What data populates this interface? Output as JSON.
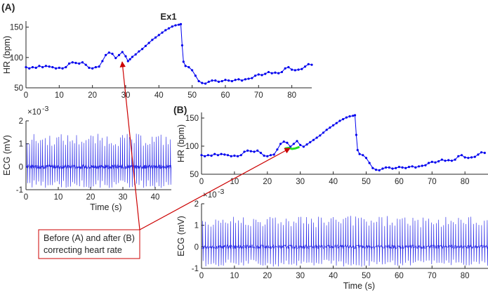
{
  "figure": {
    "title": "Ex1",
    "colors": {
      "hr_line": "#0000ee",
      "ecg_line": "#1a1ae6",
      "corrected_segment": "#22dd22",
      "annotation": "#cc0000",
      "axis": "#262626"
    },
    "callout_lines": [
      "Before (A) and after (B)",
      "correcting heart rate"
    ]
  },
  "chart_data": [
    {
      "id": "A-hr",
      "panel_label": "(A)",
      "type": "line",
      "title": "Ex1",
      "xlabel": "",
      "ylabel": "HR (bpm)",
      "xlim": [
        0,
        86
      ],
      "ylim": [
        50,
        160
      ],
      "xticks": [
        0,
        10,
        20,
        30,
        40,
        50,
        60,
        70,
        80
      ],
      "yticks": [
        50,
        100,
        150
      ],
      "grid": false,
      "series": [
        {
          "marker": "dot",
          "points": [
            [
              0,
              84
            ],
            [
              1,
              82
            ],
            [
              2,
              84
            ],
            [
              3,
              83
            ],
            [
              4,
              86
            ],
            [
              5,
              84
            ],
            [
              6,
              86
            ],
            [
              7,
              85
            ],
            [
              8,
              84
            ],
            [
              9,
              82
            ],
            [
              10,
              83
            ],
            [
              11,
              82
            ],
            [
              12,
              84
            ],
            [
              13,
              90
            ],
            [
              14,
              92
            ],
            [
              15,
              91
            ],
            [
              16,
              90
            ],
            [
              17,
              92
            ],
            [
              18,
              88
            ],
            [
              19,
              83
            ],
            [
              20,
              82
            ],
            [
              21,
              84
            ],
            [
              22,
              85
            ],
            [
              23,
              94
            ],
            [
              24,
              104
            ],
            [
              25,
              108
            ],
            [
              26,
              106
            ],
            [
              27,
              99
            ],
            [
              28,
              104
            ],
            [
              29,
              109
            ],
            [
              30,
              102
            ],
            [
              30.7,
              94
            ],
            [
              31.3,
              97
            ],
            [
              32,
              101
            ],
            [
              33,
              105
            ],
            [
              34,
              110
            ],
            [
              35,
              114
            ],
            [
              36,
              119
            ],
            [
              37,
              124
            ],
            [
              38,
              129
            ],
            [
              39,
              133
            ],
            [
              40,
              137
            ],
            [
              41,
              141
            ],
            [
              42,
              145
            ],
            [
              43,
              148
            ],
            [
              44,
              151
            ],
            [
              45,
              153
            ],
            [
              46,
              154
            ],
            [
              46.6,
              155
            ],
            [
              47,
              120
            ],
            [
              47.4,
              93
            ],
            [
              48,
              86
            ],
            [
              49,
              84
            ],
            [
              50,
              79
            ],
            [
              51,
              70
            ],
            [
              52,
              61
            ],
            [
              53,
              58
            ],
            [
              54,
              57
            ],
            [
              55,
              60
            ],
            [
              56,
              62
            ],
            [
              57,
              62
            ],
            [
              58,
              60
            ],
            [
              59,
              61
            ],
            [
              60,
              63
            ],
            [
              61,
              62
            ],
            [
              62,
              61
            ],
            [
              63,
              63
            ],
            [
              64,
              64
            ],
            [
              65,
              62
            ],
            [
              66,
              64
            ],
            [
              67,
              65
            ],
            [
              68,
              66
            ],
            [
              69,
              70
            ],
            [
              70,
              72
            ],
            [
              71,
              71
            ],
            [
              72,
              73
            ],
            [
              73,
              76
            ],
            [
              74,
              74
            ],
            [
              75,
              75
            ],
            [
              76,
              74
            ],
            [
              77,
              76
            ],
            [
              78,
              82
            ],
            [
              79,
              84
            ],
            [
              80,
              80
            ],
            [
              81,
              79
            ],
            [
              82,
              80
            ],
            [
              83,
              81
            ],
            [
              84,
              85
            ],
            [
              85,
              89
            ],
            [
              86,
              88
            ]
          ]
        }
      ]
    },
    {
      "id": "A-ecg",
      "type": "line",
      "xlabel": "Time (s)",
      "ylabel": "ECG (mV)",
      "exponent_label": "×10",
      "exponent_power": "-3",
      "xlim": [
        0,
        45
      ],
      "ylim": [
        -1,
        2
      ],
      "xticks": [
        0,
        10,
        20,
        30,
        40
      ],
      "yticks": [
        -1,
        0,
        1,
        2
      ],
      "grid": false,
      "series": [
        {
          "kind": "ecg",
          "baseline": 0,
          "beats_per_second_mean": 1.4,
          "r_peak": 1.2,
          "s_trough": -0.85
        }
      ]
    },
    {
      "id": "B-hr",
      "panel_label": "(B)",
      "type": "line",
      "xlabel": "",
      "ylabel": "HR (bpm)",
      "xlim": [
        0,
        87
      ],
      "ylim": [
        50,
        160
      ],
      "xticks": [
        0,
        10,
        20,
        30,
        40,
        50,
        60,
        70,
        80
      ],
      "yticks": [
        50,
        100,
        150
      ],
      "grid": false,
      "series": [
        {
          "marker": "dot",
          "points": [
            [
              0,
              84
            ],
            [
              1,
              82
            ],
            [
              2,
              84
            ],
            [
              3,
              83
            ],
            [
              4,
              86
            ],
            [
              5,
              84
            ],
            [
              6,
              86
            ],
            [
              7,
              85
            ],
            [
              8,
              84
            ],
            [
              9,
              82
            ],
            [
              10,
              83
            ],
            [
              11,
              82
            ],
            [
              12,
              84
            ],
            [
              13,
              90
            ],
            [
              14,
              92
            ],
            [
              15,
              91
            ],
            [
              16,
              90
            ],
            [
              17,
              92
            ],
            [
              18,
              88
            ],
            [
              19,
              83
            ],
            [
              20,
              82
            ],
            [
              21,
              84
            ],
            [
              22,
              85
            ],
            [
              23,
              94
            ],
            [
              24,
              104
            ],
            [
              25,
              108
            ],
            [
              26,
              106
            ],
            [
              27,
              99
            ],
            [
              28,
              104
            ],
            [
              29,
              109
            ],
            [
              30,
              102
            ],
            [
              31,
              99
            ],
            [
              32,
              103
            ],
            [
              33,
              107
            ],
            [
              34,
              111
            ],
            [
              35,
              115
            ],
            [
              36,
              119
            ],
            [
              37,
              124
            ],
            [
              38,
              129
            ],
            [
              39,
              133
            ],
            [
              40,
              137
            ],
            [
              41,
              141
            ],
            [
              42,
              145
            ],
            [
              43,
              148
            ],
            [
              44,
              151
            ],
            [
              45,
              153
            ],
            [
              46,
              154
            ],
            [
              46.6,
              155
            ],
            [
              47,
              120
            ],
            [
              47.4,
              93
            ],
            [
              48,
              86
            ],
            [
              49,
              84
            ],
            [
              50,
              79
            ],
            [
              51,
              70
            ],
            [
              52,
              61
            ],
            [
              53,
              58
            ],
            [
              54,
              57
            ],
            [
              55,
              60
            ],
            [
              56,
              62
            ],
            [
              57,
              62
            ],
            [
              58,
              60
            ],
            [
              59,
              61
            ],
            [
              60,
              63
            ],
            [
              61,
              62
            ],
            [
              62,
              61
            ],
            [
              63,
              63
            ],
            [
              64,
              64
            ],
            [
              65,
              62
            ],
            [
              66,
              64
            ],
            [
              67,
              65
            ],
            [
              68,
              66
            ],
            [
              69,
              70
            ],
            [
              70,
              72
            ],
            [
              71,
              71
            ],
            [
              72,
              73
            ],
            [
              73,
              76
            ],
            [
              74,
              74
            ],
            [
              75,
              75
            ],
            [
              76,
              74
            ],
            [
              77,
              76
            ],
            [
              78,
              82
            ],
            [
              79,
              84
            ],
            [
              80,
              80
            ],
            [
              81,
              79
            ],
            [
              82,
              80
            ],
            [
              83,
              81
            ],
            [
              84,
              85
            ],
            [
              85,
              89
            ],
            [
              86,
              88
            ]
          ]
        },
        {
          "highlight": true,
          "points": [
            [
              25.5,
              96
            ],
            [
              26.5,
              97
            ],
            [
              27.5,
              95
            ],
            [
              28.5,
              96
            ],
            [
              29.5,
              98
            ]
          ]
        }
      ]
    },
    {
      "id": "B-ecg",
      "type": "line",
      "xlabel": "Time (s)",
      "ylabel": "ECG (mV)",
      "exponent_label": "×10",
      "exponent_power": "-3",
      "xlim": [
        0,
        87
      ],
      "ylim": [
        -1,
        2
      ],
      "xticks": [
        0,
        10,
        20,
        30,
        40,
        50,
        60,
        70,
        80
      ],
      "yticks": [
        -1,
        0,
        1,
        2
      ],
      "grid": false,
      "series": [
        {
          "kind": "ecg",
          "baseline": 0,
          "beats_per_second_mean": 1.3,
          "r_peak": 1.2,
          "s_trough": -0.85
        }
      ]
    }
  ]
}
